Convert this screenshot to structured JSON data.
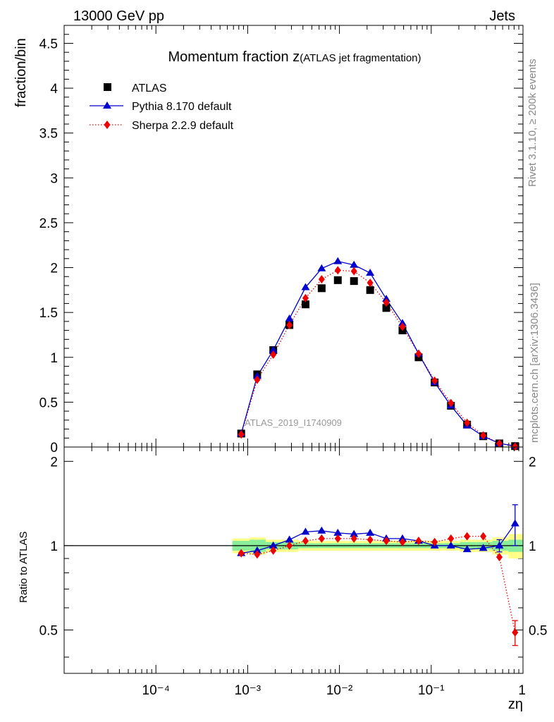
{
  "header": {
    "left": "13000 GeV pp",
    "right": "Jets"
  },
  "side_labels": {
    "rivet": "Rivet 3.1.10, ≥ 200k events",
    "mcplots": "mcplots.cern.ch [arXiv:1306.3436]"
  },
  "watermark": "ATLAS_2019_I1740909",
  "colors": {
    "atlas": "#000000",
    "pythia": "#0000cc",
    "sherpa": "#ee0000",
    "band_inner": "#88ee99",
    "band_outer": "#ffff88"
  },
  "chart_data": [
    {
      "type": "line",
      "title": "Momentum fraction z",
      "title_suffix": "(ATLAS jet fragmentation)",
      "ylabel": "fraction/bin",
      "xscale": "log",
      "xlim": [
        1e-05,
        1
      ],
      "ylim": [
        0,
        4.7
      ],
      "yticks": [
        0,
        0.5,
        1,
        1.5,
        2,
        2.5,
        3,
        3.5,
        4,
        4.5
      ],
      "ytick_labels": [
        "0",
        "0.5",
        "1",
        "1.5",
        "2",
        "2.5",
        "3",
        "3.5",
        "4",
        "4.5"
      ],
      "legend_position": "top-left",
      "x": [
        0.00085,
        0.00127,
        0.0019,
        0.00285,
        0.00427,
        0.0064,
        0.0096,
        0.0144,
        0.0216,
        0.0324,
        0.0486,
        0.0729,
        0.109,
        0.164,
        0.246,
        0.369,
        0.553,
        0.82
      ],
      "series": [
        {
          "name": "ATLAS",
          "style": "marker",
          "values": [
            0.15,
            0.81,
            1.08,
            1.36,
            1.59,
            1.77,
            1.86,
            1.85,
            1.75,
            1.55,
            1.3,
            1.0,
            0.72,
            0.46,
            0.25,
            0.12,
            0.04,
            0.01
          ]
        },
        {
          "name": "Pythia 8.170 default",
          "style": "line",
          "values": [
            0.15,
            0.79,
            1.08,
            1.43,
            1.78,
            1.99,
            2.07,
            2.03,
            1.94,
            1.65,
            1.38,
            1.04,
            0.72,
            0.46,
            0.24,
            0.12,
            0.04,
            0.012
          ]
        },
        {
          "name": "Sherpa 2.2.9 default",
          "style": "dotted",
          "values": [
            0.14,
            0.75,
            1.03,
            1.36,
            1.66,
            1.87,
            1.97,
            1.96,
            1.83,
            1.61,
            1.34,
            1.04,
            0.74,
            0.49,
            0.27,
            0.13,
            0.04,
            0.005
          ]
        }
      ]
    },
    {
      "type": "line",
      "ylabel": "Ratio to ATLAS",
      "xlabel": "zη",
      "xscale": "log",
      "xlim": [
        1e-05,
        1
      ],
      "ylim": [
        0.35,
        2.25
      ],
      "yticks": [
        0.5,
        1,
        2
      ],
      "ytick_labels": [
        "0.5",
        "1",
        "2"
      ],
      "xticks": [
        0.0001,
        0.001,
        0.01,
        0.1,
        1
      ],
      "xtick_labels": [
        "10⁻⁴",
        "10⁻³",
        "10⁻²",
        "10⁻¹",
        "1"
      ],
      "band_edges": [
        0.00068,
        0.00105,
        0.00158,
        0.00238,
        0.00356,
        0.00534,
        0.008,
        0.012,
        0.018,
        0.027,
        0.0405,
        0.0607,
        0.091,
        0.137,
        0.205,
        0.307,
        0.461,
        0.691,
        0.99
      ],
      "band_inner": [
        0.04,
        0.05,
        0.03,
        0.03,
        0.02,
        0.02,
        0.02,
        0.02,
        0.02,
        0.02,
        0.02,
        0.02,
        0.02,
        0.02,
        0.03,
        0.03,
        0.04,
        0.05
      ],
      "band_outer": [
        0.06,
        0.07,
        0.05,
        0.05,
        0.04,
        0.04,
        0.04,
        0.04,
        0.04,
        0.04,
        0.04,
        0.04,
        0.04,
        0.04,
        0.05,
        0.05,
        0.07,
        0.1
      ],
      "x": [
        0.00085,
        0.00127,
        0.0019,
        0.00285,
        0.00427,
        0.0064,
        0.0096,
        0.0144,
        0.0216,
        0.0324,
        0.0486,
        0.0729,
        0.109,
        0.164,
        0.246,
        0.369,
        0.553,
        0.82
      ],
      "series": [
        {
          "name": "Pythia 8.170 default",
          "values": [
            0.94,
            0.96,
            1.0,
            1.05,
            1.12,
            1.13,
            1.11,
            1.1,
            1.11,
            1.06,
            1.06,
            1.04,
            1.0,
            1.0,
            0.97,
            0.98,
            1.0,
            1.2
          ],
          "errors": [
            0,
            0,
            0,
            0,
            0,
            0,
            0,
            0,
            0,
            0,
            0,
            0,
            0,
            0,
            0,
            0,
            0.05,
            0.2
          ]
        },
        {
          "name": "Sherpa 2.2.9 default",
          "values": [
            0.94,
            0.93,
            0.96,
            1.0,
            1.04,
            1.06,
            1.06,
            1.06,
            1.05,
            1.04,
            1.03,
            1.04,
            1.03,
            1.06,
            1.08,
            1.08,
            0.91,
            0.49
          ],
          "errors": [
            0,
            0,
            0,
            0,
            0,
            0,
            0,
            0,
            0,
            0,
            0,
            0,
            0,
            0,
            0,
            0,
            0,
            0.05
          ]
        }
      ]
    }
  ],
  "legend": [
    {
      "label": "ATLAS"
    },
    {
      "label": "Pythia 8.170 default"
    },
    {
      "label": "Sherpa 2.2.9 default"
    }
  ]
}
